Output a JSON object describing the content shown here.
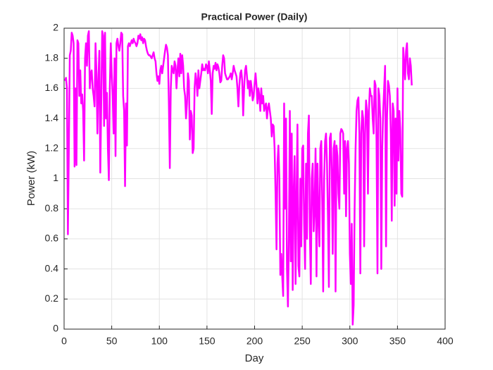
{
  "chart_data": {
    "type": "line",
    "title": "Practical Power (Daily)",
    "x_label": "Day",
    "y_label": "Power (kW)",
    "x": [
      1,
      2,
      3,
      4,
      5,
      6,
      7,
      8,
      9,
      10,
      11,
      12,
      13,
      14,
      15,
      16,
      17,
      18,
      19,
      20,
      21,
      22,
      23,
      24,
      25,
      26,
      27,
      28,
      29,
      30,
      31,
      32,
      33,
      34,
      35,
      36,
      37,
      38,
      39,
      40,
      41,
      42,
      43,
      44,
      45,
      46,
      47,
      48,
      49,
      50,
      51,
      52,
      53,
      54,
      55,
      56,
      57,
      58,
      59,
      60,
      61,
      62,
      63,
      64,
      65,
      66,
      67,
      68,
      69,
      70,
      71,
      72,
      73,
      74,
      75,
      76,
      77,
      78,
      79,
      80,
      81,
      82,
      83,
      84,
      85,
      86,
      87,
      88,
      89,
      90,
      91,
      92,
      93,
      94,
      95,
      96,
      97,
      98,
      99,
      100,
      101,
      102,
      103,
      104,
      105,
      106,
      107,
      108,
      109,
      110,
      111,
      112,
      113,
      114,
      115,
      116,
      117,
      118,
      119,
      120,
      121,
      122,
      123,
      124,
      125,
      126,
      127,
      128,
      129,
      130,
      131,
      132,
      133,
      134,
      135,
      136,
      137,
      138,
      139,
      140,
      141,
      142,
      143,
      144,
      145,
      146,
      147,
      148,
      149,
      150,
      151,
      152,
      153,
      154,
      155,
      156,
      157,
      158,
      159,
      160,
      161,
      162,
      163,
      164,
      165,
      166,
      167,
      168,
      169,
      170,
      171,
      172,
      173,
      174,
      175,
      176,
      177,
      178,
      179,
      180,
      181,
      182,
      183,
      184,
      185,
      186,
      187,
      188,
      189,
      190,
      191,
      192,
      193,
      194,
      195,
      196,
      197,
      198,
      199,
      200,
      201,
      202,
      203,
      204,
      205,
      206,
      207,
      208,
      209,
      210,
      211,
      212,
      213,
      214,
      215,
      216,
      217,
      218,
      219,
      220,
      221,
      222,
      223,
      224,
      225,
      226,
      227,
      228,
      229,
      230,
      231,
      232,
      233,
      234,
      235,
      236,
      237,
      238,
      239,
      240,
      241,
      242,
      243,
      244,
      245,
      246,
      247,
      248,
      249,
      250,
      251,
      252,
      253,
      254,
      255,
      256,
      257,
      258,
      259,
      260,
      261,
      262,
      263,
      264,
      265,
      266,
      267,
      268,
      269,
      270,
      271,
      272,
      273,
      274,
      275,
      276,
      277,
      278,
      279,
      280,
      281,
      282,
      283,
      284,
      285,
      286,
      287,
      288,
      289,
      290,
      291,
      292,
      293,
      294,
      295,
      296,
      297,
      298,
      299,
      300,
      301,
      302,
      303,
      304,
      305,
      306,
      307,
      308,
      309,
      310,
      311,
      312,
      313,
      314,
      315,
      316,
      317,
      318,
      319,
      320,
      321,
      322,
      323,
      324,
      325,
      326,
      327,
      328,
      329,
      330,
      331,
      332,
      333,
      334,
      335,
      336,
      337,
      338,
      339,
      340,
      341,
      342,
      343,
      344,
      345,
      346,
      347,
      348,
      349,
      350,
      351,
      352,
      353,
      354,
      355,
      356,
      357,
      358,
      359,
      360,
      361,
      362,
      363,
      364,
      365
    ],
    "series": [
      {
        "color": "#ff00ff",
        "values": [
          1.65,
          1.67,
          1.6,
          0.63,
          1.2,
          1.82,
          1.85,
          1.97,
          1.95,
          1.9,
          1.08,
          1.6,
          1.09,
          1.92,
          1.9,
          1.55,
          1.72,
          1.5,
          1.56,
          1.45,
          1.12,
          1.8,
          1.9,
          1.75,
          1.95,
          1.98,
          1.6,
          1.7,
          1.72,
          1.6,
          1.55,
          1.48,
          1.9,
          1.7,
          1.3,
          1.65,
          1.85,
          1.04,
          1.5,
          1.98,
          1.95,
          1.35,
          1.97,
          1.4,
          1.57,
          1.2,
          0.99,
          1.6,
          1.9,
          1.7,
          1.55,
          1.3,
          1.8,
          1.15,
          1.9,
          1.93,
          1.88,
          1.85,
          1.9,
          1.97,
          1.96,
          1.55,
          1.45,
          0.95,
          1.5,
          1.22,
          1.88,
          1.9,
          1.88,
          1.9,
          1.92,
          1.9,
          1.93,
          1.91,
          1.9,
          1.88,
          1.9,
          1.95,
          1.93,
          1.96,
          1.92,
          1.94,
          1.9,
          1.93,
          1.92,
          1.88,
          1.85,
          1.83,
          1.82,
          1.82,
          1.81,
          1.8,
          1.82,
          1.84,
          1.8,
          1.78,
          1.7,
          1.65,
          1.68,
          1.63,
          1.72,
          1.75,
          1.7,
          1.75,
          1.8,
          1.85,
          1.89,
          1.87,
          1.82,
          1.5,
          1.07,
          1.6,
          1.75,
          1.72,
          1.7,
          1.78,
          1.75,
          1.6,
          1.72,
          1.8,
          1.68,
          1.83,
          1.7,
          1.82,
          1.75,
          1.6,
          1.55,
          1.4,
          1.5,
          1.7,
          1.65,
          1.26,
          1.45,
          1.42,
          1.17,
          1.2,
          1.6,
          1.7,
          1.65,
          1.55,
          1.72,
          1.6,
          1.65,
          1.7,
          1.76,
          1.72,
          1.73,
          1.72,
          1.76,
          1.75,
          1.7,
          1.78,
          1.72,
          1.65,
          1.43,
          1.7,
          1.75,
          1.73,
          1.77,
          1.72,
          1.76,
          1.74,
          1.7,
          1.64,
          1.65,
          1.75,
          1.82,
          1.8,
          1.7,
          1.68,
          1.66,
          1.66,
          1.67,
          1.68,
          1.7,
          1.66,
          1.7,
          1.75,
          1.72,
          1.7,
          1.68,
          1.6,
          1.48,
          1.62,
          1.7,
          1.72,
          1.65,
          1.42,
          1.6,
          1.72,
          1.75,
          1.68,
          1.6,
          1.65,
          1.55,
          1.65,
          1.6,
          1.52,
          1.55,
          1.63,
          1.7,
          1.62,
          1.5,
          1.6,
          1.55,
          1.45,
          1.6,
          1.5,
          1.55,
          1.45,
          1.48,
          1.5,
          1.4,
          1.47,
          1.5,
          1.45,
          1.4,
          1.28,
          1.36,
          1.35,
          1.2,
          0.9,
          0.53,
          1.1,
          1.22,
          1.0,
          0.36,
          0.5,
          0.35,
          0.22,
          1.5,
          0.8,
          1.4,
          0.4,
          0.15,
          0.6,
          1.45,
          0.45,
          1.3,
          0.26,
          0.9,
          1.15,
          0.3,
          0.85,
          1.36,
          0.42,
          0.35,
          1.0,
          0.55,
          1.2,
          1.22,
          0.7,
          0.4,
          1.1,
          0.6,
          1.3,
          1.42,
          0.65,
          0.3,
          1.0,
          1.1,
          0.65,
          0.8,
          1.2,
          0.35,
          1.1,
          0.75,
          0.55,
          1.2,
          1.25,
          0.85,
          0.25,
          1.0,
          1.25,
          1.3,
          1.1,
          0.75,
          0.28,
          1.27,
          1.3,
          1.05,
          0.5,
          1.2,
          1.25,
          0.25,
          1.22,
          1.15,
          0.9,
          0.8,
          1.3,
          1.33,
          1.32,
          1.3,
          0.9,
          1.25,
          0.75,
          1.2,
          1.25,
          1.1,
          0.5,
          0.3,
          0.7,
          0.03,
          0.16,
          0.8,
          1.2,
          1.45,
          1.52,
          1.54,
          1.3,
          0.37,
          1.3,
          1.45,
          1.4,
          0.55,
          1.3,
          1.52,
          1.45,
          0.9,
          1.45,
          1.6,
          1.55,
          1.55,
          1.4,
          1.3,
          1.65,
          1.62,
          1.25,
          0.37,
          1.6,
          1.55,
          1.4,
          0.4,
          1.2,
          1.45,
          1.6,
          1.75,
          0.55,
          1.4,
          1.65,
          1.62,
          1.55,
          1.3,
          0.72,
          1.5,
          1.45,
          0.82,
          1.4,
          0.9,
          1.6,
          1.12,
          1.45,
          1.32,
          0.9,
          0.88,
          1.87,
          1.78,
          1.66,
          1.85,
          1.9,
          1.7,
          1.66,
          1.8,
          1.75,
          1.62
        ]
      }
    ],
    "xlim": [
      0,
      400
    ],
    "xticks": [
      0,
      50,
      100,
      150,
      200,
      250,
      300,
      350,
      400
    ],
    "ylim": [
      0,
      2
    ],
    "yticks": [
      0,
      0.2,
      0.4,
      0.6,
      0.8,
      1,
      1.2,
      1.4,
      1.6,
      1.8,
      2
    ],
    "grid": true
  }
}
